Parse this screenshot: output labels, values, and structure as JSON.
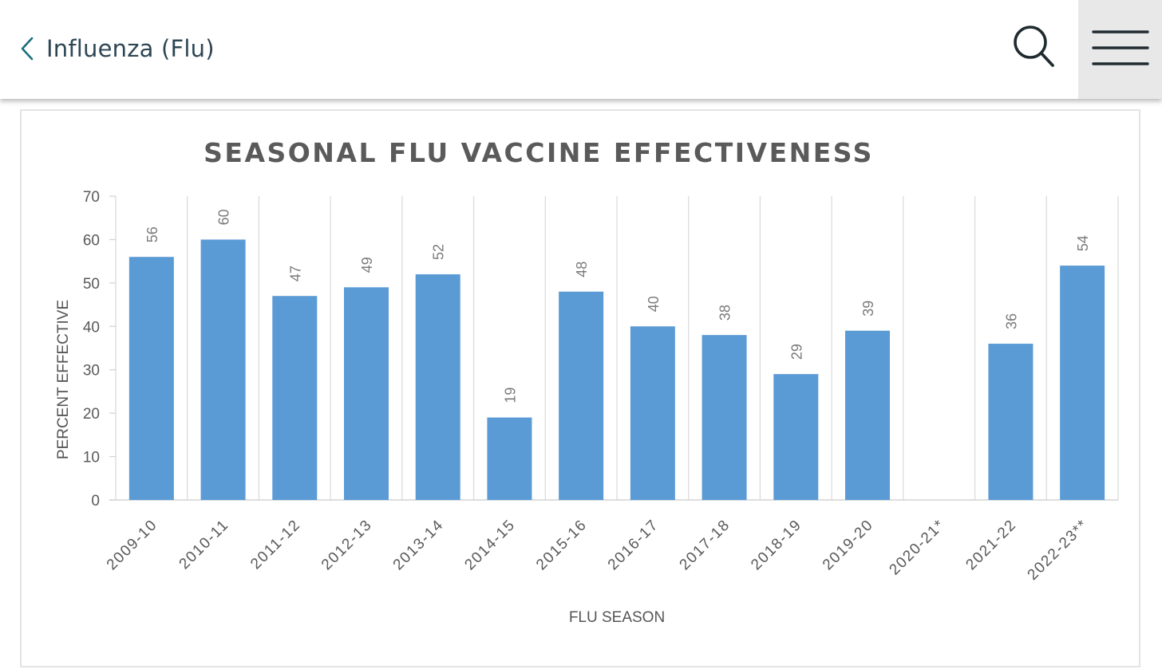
{
  "header": {
    "back_label": "Influenza (Flu)",
    "icons": {
      "back": "chevron-left-icon",
      "search": "search-icon",
      "menu": "hamburger-menu-icon"
    },
    "accent_color": "#1a6f7a",
    "text_color": "#2e4654"
  },
  "chart_data": {
    "type": "bar",
    "title": "SEASONAL FLU VACCINE EFFECTIVENESS",
    "xlabel": "FLU SEASON",
    "ylabel": "PERCENT EFFECTIVE",
    "ylim": [
      0,
      70
    ],
    "yticks": [
      0,
      10,
      20,
      30,
      40,
      50,
      60,
      70
    ],
    "grid": "vertical",
    "bar_color": "#5b9bd5",
    "data_labels": true,
    "categories": [
      "2009-10",
      "2010-11",
      "2011-12",
      "2012-13",
      "2013-14",
      "2014-15",
      "2015-16",
      "2016-17",
      "2017-18",
      "2018-19",
      "2019-20",
      "2020-21*",
      "2021-22",
      "2022-23**"
    ],
    "values": [
      56,
      60,
      47,
      49,
      52,
      19,
      48,
      40,
      38,
      29,
      39,
      null,
      36,
      54
    ]
  }
}
